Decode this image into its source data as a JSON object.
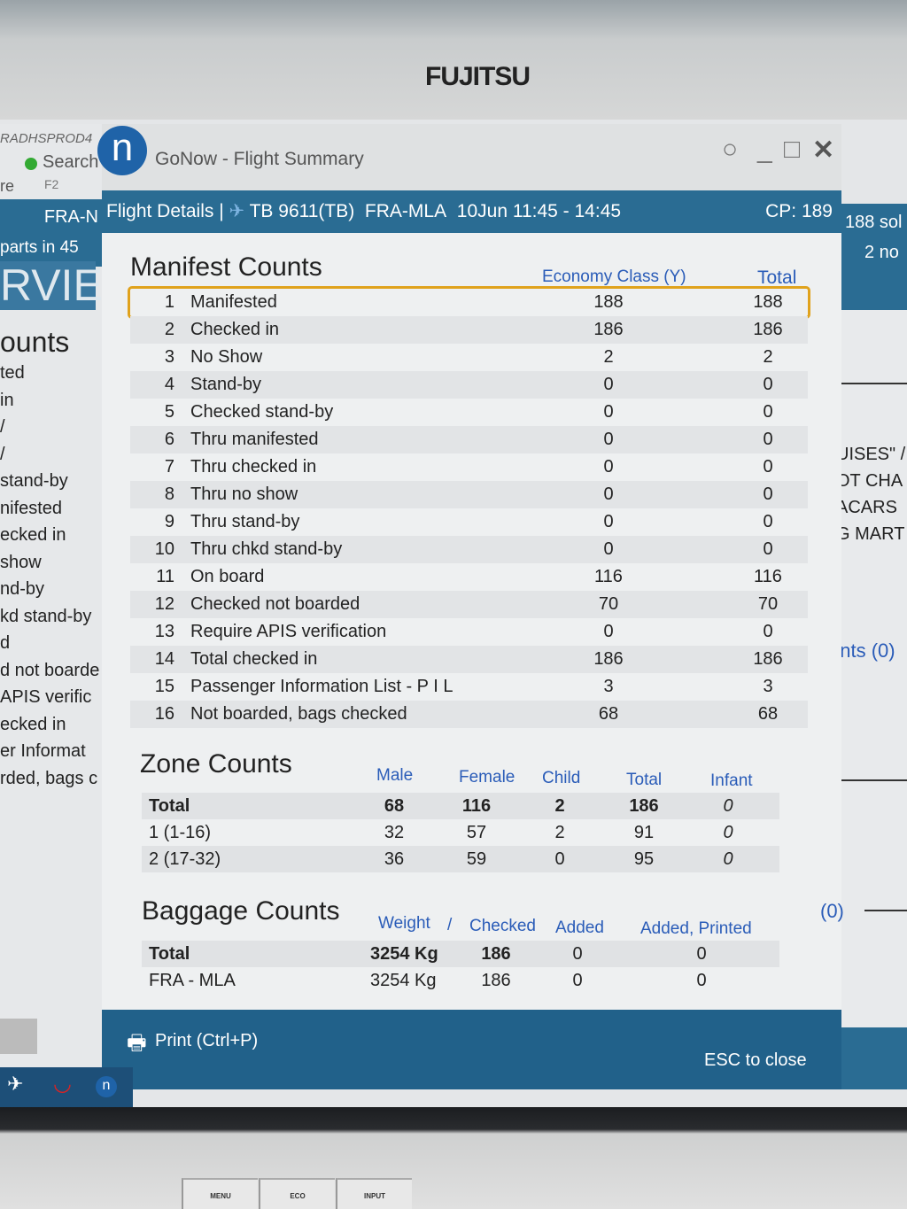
{
  "monitor": {
    "brand": "FUJITSU",
    "buttons": [
      "MENU",
      "ECO",
      "INPUT"
    ]
  },
  "background_left": {
    "host": "RADHSPROD4",
    "search": "Search",
    "search_key": "F2",
    "frag_re": "re",
    "route": "FRA-N",
    "departs": "parts in 45",
    "overview": "RVIE",
    "counts": "ounts",
    "items": [
      "ted",
      " in",
      "/",
      "/",
      "stand-by",
      "nifested",
      "ecked in",
      " show",
      "nd-by",
      "kd stand-by",
      "d",
      "d not boarde",
      " APIS verific",
      "ecked in",
      "er Informat",
      "rded, bags c"
    ]
  },
  "background_right": {
    "sold": "188 sol",
    "no": "2 no",
    "lines": [
      "UISES\" /",
      "OT CHA",
      "ACARS",
      "G MART"
    ],
    "ents": "ents (0)",
    "zero": "(0)"
  },
  "window": {
    "title": "GoNow - Flight Summary",
    "app_icon": "n"
  },
  "header": {
    "label": "Flight Details |",
    "flight": "TB 9611(TB)",
    "route": "FRA-MLA",
    "date": "10Jun",
    "time": "11:45 - 14:45",
    "cp": "CP: 189"
  },
  "manifest": {
    "title": "Manifest Counts",
    "col_economy": "Economy Class (Y)",
    "col_total": "Total",
    "rows": [
      {
        "n": "1",
        "label": "Manifested",
        "economy": "188",
        "total": "188"
      },
      {
        "n": "2",
        "label": "Checked in",
        "economy": "186",
        "total": "186"
      },
      {
        "n": "3",
        "label": "No Show",
        "economy": "2",
        "total": "2"
      },
      {
        "n": "4",
        "label": "Stand-by",
        "economy": "0",
        "total": "0"
      },
      {
        "n": "5",
        "label": "Checked stand-by",
        "economy": "0",
        "total": "0"
      },
      {
        "n": "6",
        "label": "Thru manifested",
        "economy": "0",
        "total": "0"
      },
      {
        "n": "7",
        "label": "Thru checked in",
        "economy": "0",
        "total": "0"
      },
      {
        "n": "8",
        "label": "Thru no show",
        "economy": "0",
        "total": "0"
      },
      {
        "n": "9",
        "label": "Thru stand-by",
        "economy": "0",
        "total": "0"
      },
      {
        "n": "10",
        "label": "Thru chkd stand-by",
        "economy": "0",
        "total": "0"
      },
      {
        "n": "11",
        "label": "On board",
        "economy": "116",
        "total": "116"
      },
      {
        "n": "12",
        "label": "Checked not boarded",
        "economy": "70",
        "total": "70"
      },
      {
        "n": "13",
        "label": "Require APIS verification",
        "economy": "0",
        "total": "0"
      },
      {
        "n": "14",
        "label": "Total checked in",
        "economy": "186",
        "total": "186"
      },
      {
        "n": "15",
        "label": "Passenger Information List - P I L",
        "economy": "3",
        "total": "3"
      },
      {
        "n": "16",
        "label": "Not boarded, bags checked",
        "economy": "68",
        "total": "68"
      }
    ]
  },
  "zone": {
    "title": "Zone Counts",
    "cols": [
      "Male",
      "Female",
      "Child",
      "Total",
      "Infant"
    ],
    "rows": [
      {
        "label": "Total",
        "vals": [
          "68",
          "116",
          "2",
          "186",
          "0"
        ]
      },
      {
        "label": "1 (1-16)",
        "vals": [
          "32",
          "57",
          "2",
          "91",
          "0"
        ]
      },
      {
        "label": "2 (17-32)",
        "vals": [
          "36",
          "59",
          "0",
          "95",
          "0"
        ]
      }
    ]
  },
  "baggage": {
    "title": "Baggage Counts",
    "cols": [
      "Weight",
      "/",
      "Checked",
      "Added",
      "Added, Printed"
    ],
    "rows": [
      {
        "label": "Total",
        "weight": "3254 Kg",
        "checked": "186",
        "added": "0",
        "printed": "0"
      },
      {
        "label": "FRA - MLA",
        "weight": "3254 Kg",
        "checked": "186",
        "added": "0",
        "printed": "0"
      }
    ]
  },
  "footer": {
    "print": "Print (Ctrl+P)",
    "close": "ESC to close"
  },
  "colors": {
    "header_blue": "#2a6c93",
    "highlight": "#e0a21c",
    "column_blue": "#2a5cb8"
  }
}
